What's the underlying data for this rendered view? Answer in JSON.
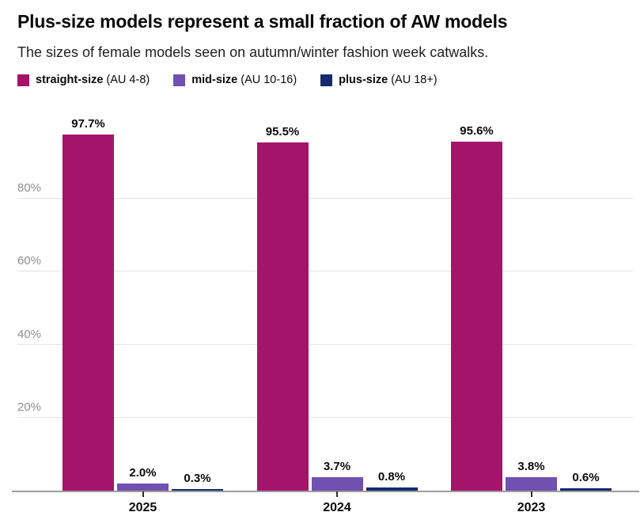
{
  "header": {
    "title": "Plus-size models represent a small fraction of AW models",
    "subtitle": "The sizes of female models seen on autumn/winter fashion week catwalks."
  },
  "legend": {
    "items": [
      {
        "name": "straight-size",
        "range": "(AU 4-8)",
        "color": "#a5146b"
      },
      {
        "name": "mid-size",
        "range": "(AU 10-16)",
        "color": "#7050b0"
      },
      {
        "name": "plus-size",
        "range": "(AU 18+)",
        "color": "#142a70"
      }
    ]
  },
  "chart_data": {
    "type": "bar",
    "categories": [
      "2025",
      "2024",
      "2023"
    ],
    "series": [
      {
        "name": "straight-size (AU 4-8)",
        "color": "#a5146b",
        "values": [
          97.7,
          95.5,
          95.6
        ]
      },
      {
        "name": "mid-size (AU 10-16)",
        "color": "#7050b0",
        "values": [
          2.0,
          3.7,
          3.8
        ]
      },
      {
        "name": "plus-size (AU 18+)",
        "color": "#142a70",
        "values": [
          0.3,
          0.8,
          0.6
        ]
      }
    ],
    "value_labels": [
      [
        "97.7%",
        "2.0%",
        "0.3%"
      ],
      [
        "95.5%",
        "3.7%",
        "0.8%"
      ],
      [
        "95.6%",
        "3.8%",
        "0.6%"
      ]
    ],
    "yticks": [
      20,
      40,
      60,
      80
    ],
    "ytick_suffix": "%",
    "ylim": [
      0,
      100
    ],
    "grid": true,
    "legend_position": "top"
  },
  "colors": {
    "grid": "#e3e3e3",
    "axis": "#9c9c9c",
    "x_tick": "#2b2b2b",
    "ytick_label": "#8f8f8f",
    "value_label": "#0a0a0a",
    "category_label": "#0a0a0a"
  }
}
